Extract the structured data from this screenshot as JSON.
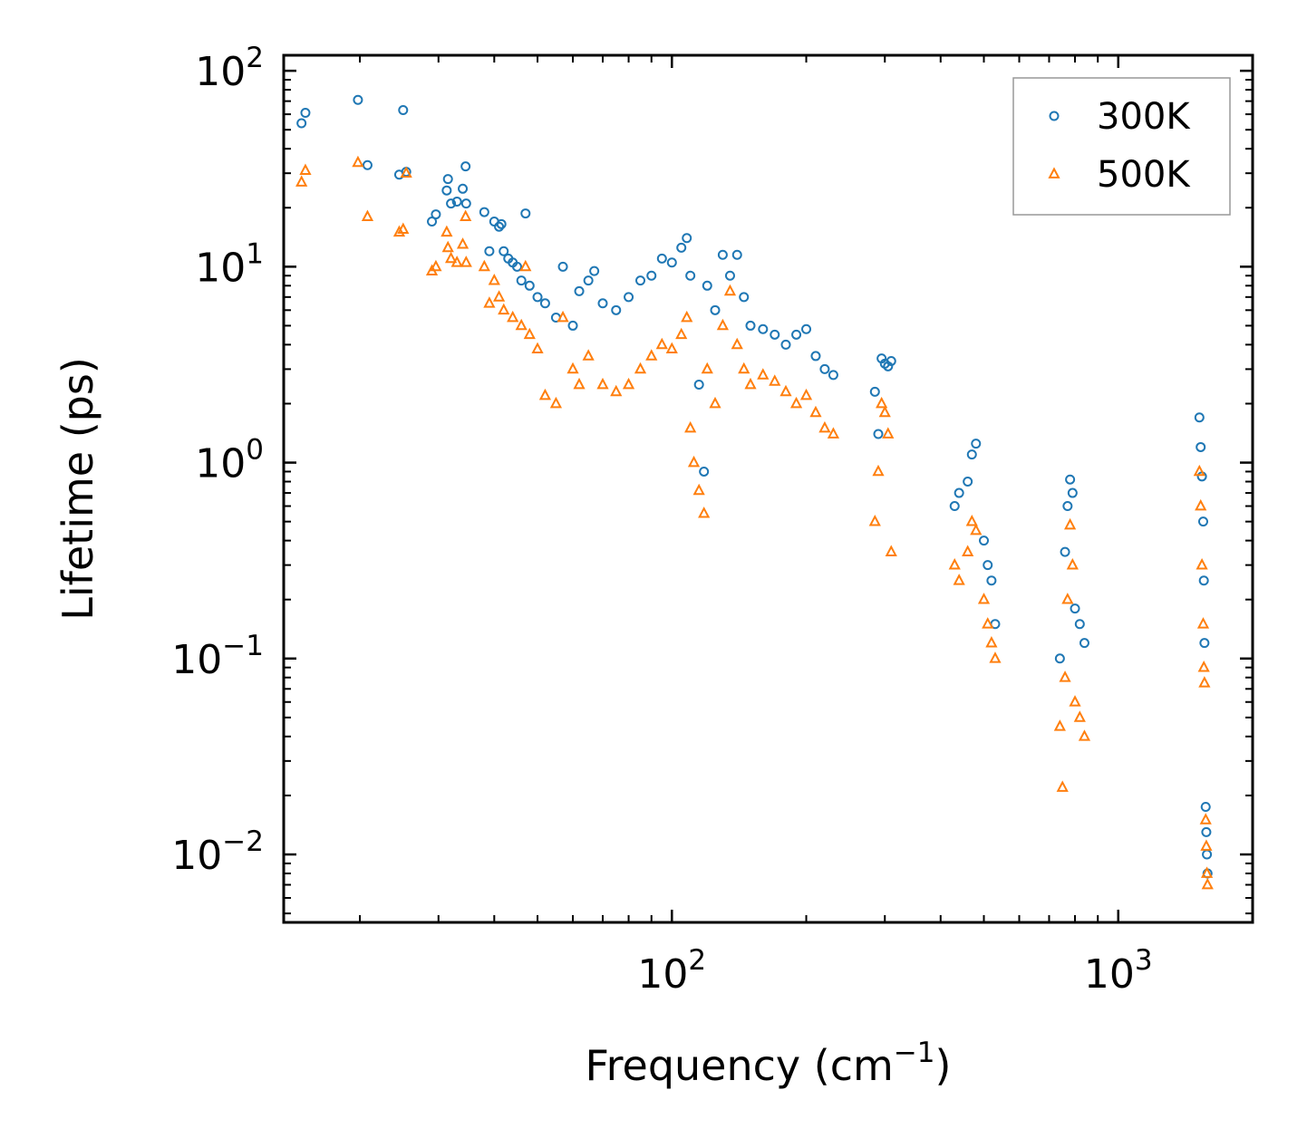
{
  "chart_data": {
    "type": "scatter",
    "x_scale": "log",
    "y_scale": "log",
    "xlim": [
      13.5,
      2000
    ],
    "ylim": [
      0.0045,
      120
    ],
    "xlabel": {
      "base": "Frequency (cm",
      "sup": "−1",
      "tail": ")"
    },
    "ylabel": "Lifetime (ps)",
    "x_ticks": [
      {
        "value": 100,
        "base": "10",
        "exp": "2"
      },
      {
        "value": 1000,
        "base": "10",
        "exp": "3"
      }
    ],
    "y_ticks": [
      {
        "value": 0.01,
        "base": "10",
        "exp": "−2"
      },
      {
        "value": 0.1,
        "base": "10",
        "exp": "−1"
      },
      {
        "value": 1,
        "base": "10",
        "exp": "0"
      },
      {
        "value": 10,
        "base": "10",
        "exp": "1"
      },
      {
        "value": 100,
        "base": "10",
        "exp": "2"
      }
    ],
    "grid": false,
    "legend_position": "top-right",
    "series": [
      {
        "name": "300K",
        "marker": "circle",
        "color": "#1f77b4",
        "points": [
          [
            14.8,
            54
          ],
          [
            15.1,
            61
          ],
          [
            19.8,
            71
          ],
          [
            20.8,
            33
          ],
          [
            24.5,
            29.5
          ],
          [
            25.0,
            63
          ],
          [
            25.4,
            30.5
          ],
          [
            29.0,
            17
          ],
          [
            29.6,
            18.5
          ],
          [
            31.3,
            24.5
          ],
          [
            31.5,
            28
          ],
          [
            32.0,
            21
          ],
          [
            33.0,
            21.5
          ],
          [
            34.0,
            25
          ],
          [
            34.5,
            32.5
          ],
          [
            34.6,
            21
          ],
          [
            38.0,
            19
          ],
          [
            39.0,
            12
          ],
          [
            40.0,
            17
          ],
          [
            41.0,
            16
          ],
          [
            41.5,
            16.5
          ],
          [
            42.0,
            12
          ],
          [
            43.0,
            11
          ],
          [
            44.0,
            10.5
          ],
          [
            45.0,
            10
          ],
          [
            46.0,
            8.5
          ],
          [
            47.0,
            18.7
          ],
          [
            48.0,
            8
          ],
          [
            50.0,
            7
          ],
          [
            52.0,
            6.5
          ],
          [
            55.0,
            5.5
          ],
          [
            57.0,
            10
          ],
          [
            60.0,
            5
          ],
          [
            62.0,
            7.5
          ],
          [
            65.0,
            8.5
          ],
          [
            67.0,
            9.5
          ],
          [
            70.0,
            6.5
          ],
          [
            75.0,
            6
          ],
          [
            80.0,
            7
          ],
          [
            85.0,
            8.5
          ],
          [
            90.0,
            9
          ],
          [
            95.0,
            11
          ],
          [
            100.0,
            10.5
          ],
          [
            105.0,
            12.5
          ],
          [
            108.0,
            14
          ],
          [
            110.0,
            9
          ],
          [
            115.0,
            2.5
          ],
          [
            118.0,
            0.9
          ],
          [
            120.0,
            8
          ],
          [
            125.0,
            6
          ],
          [
            130.0,
            11.5
          ],
          [
            135.0,
            9
          ],
          [
            140.0,
            11.5
          ],
          [
            145.0,
            7
          ],
          [
            150.0,
            5
          ],
          [
            160.0,
            4.8
          ],
          [
            170.0,
            4.5
          ],
          [
            180.0,
            4
          ],
          [
            190.0,
            4.5
          ],
          [
            200.0,
            4.8
          ],
          [
            210.0,
            3.5
          ],
          [
            220.0,
            3
          ],
          [
            230.0,
            2.8
          ],
          [
            285.0,
            2.3
          ],
          [
            290.0,
            1.4
          ],
          [
            295.0,
            3.4
          ],
          [
            300.0,
            3.2
          ],
          [
            305.0,
            3.1
          ],
          [
            310.0,
            3.3
          ],
          [
            430.0,
            0.6
          ],
          [
            440.0,
            0.7
          ],
          [
            460.0,
            0.8
          ],
          [
            470.0,
            1.1
          ],
          [
            480.0,
            1.25
          ],
          [
            500.0,
            0.4
          ],
          [
            510.0,
            0.3
          ],
          [
            520.0,
            0.25
          ],
          [
            530.0,
            0.15
          ],
          [
            740.0,
            0.1
          ],
          [
            760.0,
            0.35
          ],
          [
            770.0,
            0.6
          ],
          [
            780.0,
            0.82
          ],
          [
            790.0,
            0.7
          ],
          [
            800.0,
            0.18
          ],
          [
            820.0,
            0.15
          ],
          [
            840.0,
            0.12
          ],
          [
            1520.0,
            1.7
          ],
          [
            1530.0,
            1.2
          ],
          [
            1540.0,
            0.85
          ],
          [
            1550.0,
            0.5
          ],
          [
            1555.0,
            0.25
          ],
          [
            1560.0,
            0.12
          ],
          [
            1570.0,
            0.0175
          ],
          [
            1575.0,
            0.013
          ],
          [
            1580.0,
            0.01
          ],
          [
            1585.0,
            0.008
          ]
        ]
      },
      {
        "name": "500K",
        "marker": "triangle",
        "color": "#ff7f0e",
        "points": [
          [
            14.8,
            27
          ],
          [
            15.1,
            31
          ],
          [
            19.8,
            34
          ],
          [
            20.8,
            18
          ],
          [
            24.5,
            15
          ],
          [
            25.0,
            15.5
          ],
          [
            25.4,
            30
          ],
          [
            29.0,
            9.5
          ],
          [
            29.6,
            10
          ],
          [
            31.3,
            15
          ],
          [
            31.5,
            12.5
          ],
          [
            32.0,
            11
          ],
          [
            33.0,
            10.5
          ],
          [
            34.0,
            13
          ],
          [
            34.5,
            18
          ],
          [
            34.6,
            10.5
          ],
          [
            38.0,
            10
          ],
          [
            39.0,
            6.5
          ],
          [
            40.0,
            8.5
          ],
          [
            41.0,
            7
          ],
          [
            42.0,
            6
          ],
          [
            44.0,
            5.5
          ],
          [
            46.0,
            5
          ],
          [
            47.0,
            10
          ],
          [
            48.0,
            4.5
          ],
          [
            50.0,
            3.8
          ],
          [
            52.0,
            2.2
          ],
          [
            55.0,
            2.0
          ],
          [
            57.0,
            5.5
          ],
          [
            60.0,
            3
          ],
          [
            62.0,
            2.5
          ],
          [
            65.0,
            3.5
          ],
          [
            70.0,
            2.5
          ],
          [
            75.0,
            2.3
          ],
          [
            80.0,
            2.5
          ],
          [
            85.0,
            3
          ],
          [
            90.0,
            3.5
          ],
          [
            95.0,
            4
          ],
          [
            100.0,
            3.8
          ],
          [
            105.0,
            4.5
          ],
          [
            108.0,
            5.5
          ],
          [
            110.0,
            1.5
          ],
          [
            112.0,
            1.0
          ],
          [
            115.0,
            0.72
          ],
          [
            118.0,
            0.55
          ],
          [
            120.0,
            3
          ],
          [
            125.0,
            2
          ],
          [
            130.0,
            5
          ],
          [
            135.0,
            7.5
          ],
          [
            140.0,
            4
          ],
          [
            145.0,
            3
          ],
          [
            150.0,
            2.5
          ],
          [
            160.0,
            2.8
          ],
          [
            170.0,
            2.6
          ],
          [
            180.0,
            2.3
          ],
          [
            190.0,
            2.0
          ],
          [
            200.0,
            2.2
          ],
          [
            210.0,
            1.8
          ],
          [
            220.0,
            1.5
          ],
          [
            230.0,
            1.4
          ],
          [
            285.0,
            0.5
          ],
          [
            290.0,
            0.9
          ],
          [
            295.0,
            2.0
          ],
          [
            300.0,
            1.8
          ],
          [
            305.0,
            1.4
          ],
          [
            310.0,
            0.35
          ],
          [
            430.0,
            0.3
          ],
          [
            440.0,
            0.25
          ],
          [
            460.0,
            0.35
          ],
          [
            470.0,
            0.5
          ],
          [
            480.0,
            0.45
          ],
          [
            500.0,
            0.2
          ],
          [
            510.0,
            0.15
          ],
          [
            520.0,
            0.12
          ],
          [
            530.0,
            0.1
          ],
          [
            740.0,
            0.045
          ],
          [
            750.0,
            0.022
          ],
          [
            760.0,
            0.08
          ],
          [
            770.0,
            0.2
          ],
          [
            780.0,
            0.48
          ],
          [
            790.0,
            0.3
          ],
          [
            800.0,
            0.06
          ],
          [
            820.0,
            0.05
          ],
          [
            840.0,
            0.04
          ],
          [
            1520.0,
            0.9
          ],
          [
            1530.0,
            0.6
          ],
          [
            1540.0,
            0.3
          ],
          [
            1550.0,
            0.15
          ],
          [
            1555.0,
            0.09
          ],
          [
            1560.0,
            0.075
          ],
          [
            1570.0,
            0.015
          ],
          [
            1575.0,
            0.011
          ],
          [
            1580.0,
            0.008
          ],
          [
            1585.0,
            0.007
          ]
        ]
      }
    ]
  }
}
